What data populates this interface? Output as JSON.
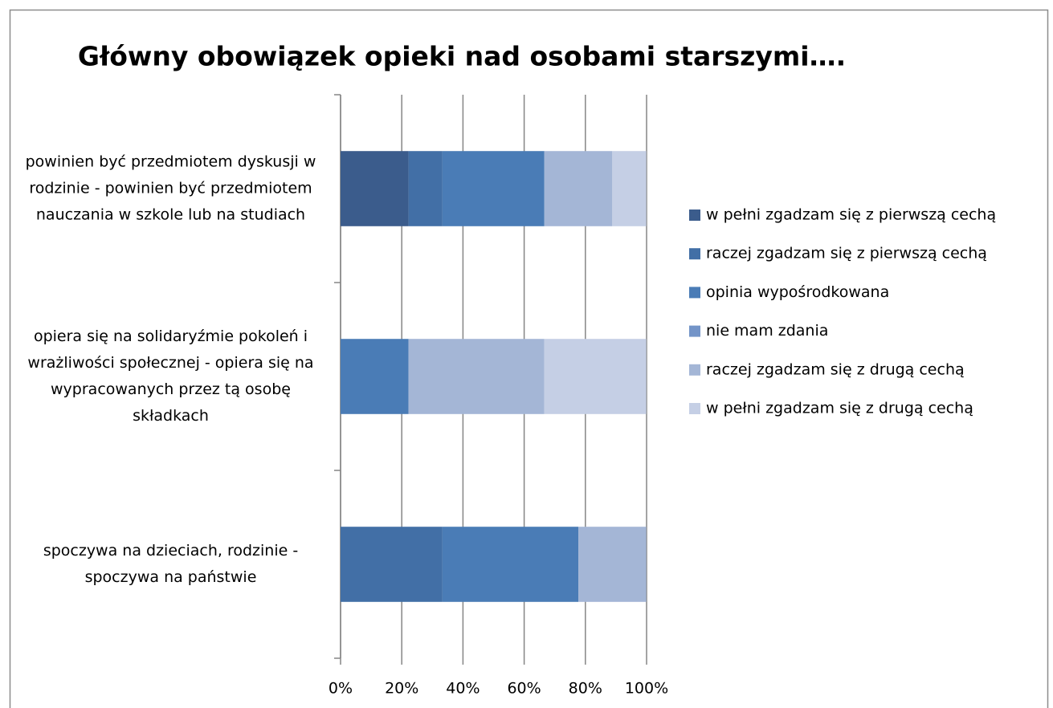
{
  "chart_data": {
    "type": "bar",
    "orientation": "horizontal",
    "stacked": true,
    "title": "Główny obowiązek opieki nad osobami starszymi….",
    "categories": [
      "powinien być przedmiotem dyskusji w rodzinie - powinien być przedmiotem nauczania w szkole lub na studiach",
      "opiera się na solidaryźmie pokoleń i wrażliwości społecznej - opiera się na wypracowanych przez tą osobę składkach",
      "spoczywa na dzieciach, rodzinie - spoczywa na państwie"
    ],
    "series": [
      {
        "name": "w pełni zgadzam się z pierwszą cechą",
        "color": "#3b5c8c",
        "values": [
          22.2,
          0,
          0
        ]
      },
      {
        "name": "raczej zgadzam się z pierwszą cechą",
        "color": "#426fa6",
        "values": [
          11.1,
          0,
          33.3
        ]
      },
      {
        "name": "opinia wypośrodkowana",
        "color": "#4a7cb6",
        "values": [
          33.3,
          22.2,
          44.4
        ]
      },
      {
        "name": "nie mam zdania",
        "color": "#7394c8",
        "values": [
          0,
          0,
          0
        ]
      },
      {
        "name": "raczej zgadzam się z drugą cechą",
        "color": "#a4b6d6",
        "values": [
          22.2,
          44.4,
          22.2
        ]
      },
      {
        "name": "w pełni zgadzam się z drugą cechą",
        "color": "#c5cfe5",
        "values": [
          11.1,
          33.3,
          0
        ]
      }
    ],
    "xlim": [
      0,
      100
    ],
    "xticks": [
      {
        "value": 0,
        "label": "0%"
      },
      {
        "value": 20,
        "label": "20%"
      },
      {
        "value": 40,
        "label": "40%"
      },
      {
        "value": 60,
        "label": "60%"
      },
      {
        "value": 80,
        "label": "80%"
      },
      {
        "value": 100,
        "label": "100%"
      }
    ],
    "grid": true,
    "legend": "right"
  }
}
